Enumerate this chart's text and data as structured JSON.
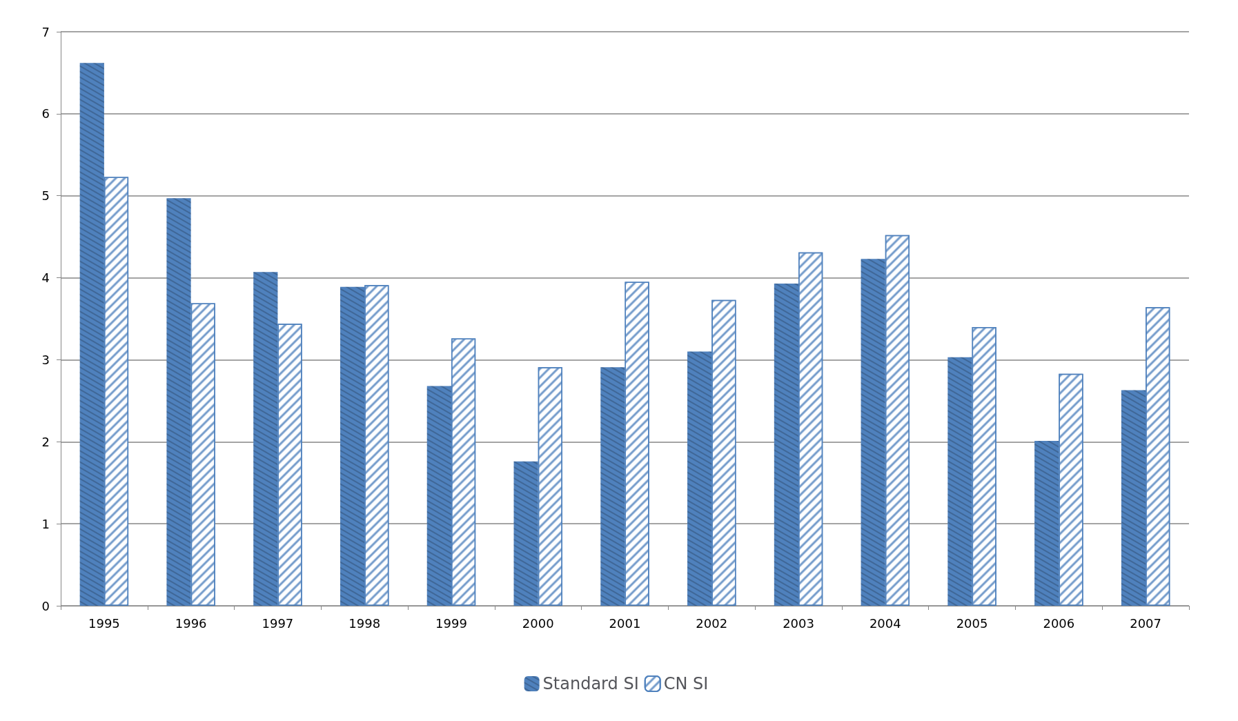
{
  "chart_data": {
    "type": "bar",
    "categories": [
      "1995",
      "1996",
      "1997",
      "1998",
      "1999",
      "2000",
      "2001",
      "2002",
      "2003",
      "2004",
      "2005",
      "2006",
      "2007"
    ],
    "series": [
      {
        "name": "Standard SI",
        "color": "#4f81bd",
        "values": [
          6.62,
          4.97,
          4.07,
          3.89,
          2.68,
          1.76,
          2.91,
          3.1,
          3.93,
          4.23,
          3.03,
          2.01,
          2.63
        ]
      },
      {
        "name": "CN SI",
        "color": "#4f81bd",
        "values": [
          5.23,
          3.69,
          3.44,
          3.91,
          3.26,
          2.91,
          3.95,
          3.73,
          4.31,
          4.52,
          3.4,
          2.83,
          3.64
        ]
      }
    ],
    "ylim": [
      0,
      7
    ],
    "yticks": [
      0,
      1,
      2,
      3,
      4,
      5,
      6,
      7
    ],
    "grid": "y",
    "legend": "bottom"
  }
}
